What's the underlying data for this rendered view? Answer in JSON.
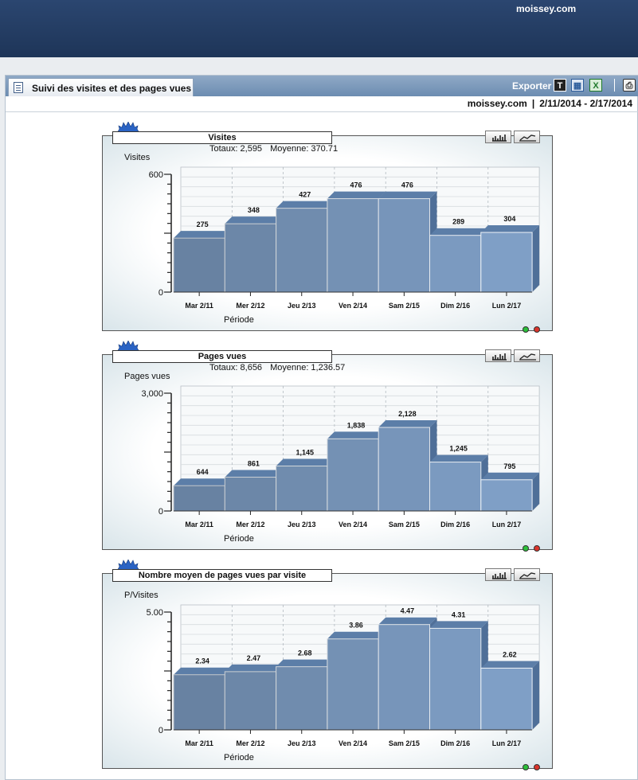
{
  "header": {
    "site": "moissey.com"
  },
  "panel": {
    "tab_label": "Suivi des visites et des pages vues",
    "export_label": "Exporter",
    "site": "moissey.com",
    "separator": "|",
    "date_range": "2/11/2014 - 2/17/2014"
  },
  "icons": {
    "tab": "report-icon",
    "export_text": "text-export-icon",
    "export_doc": "document-export-icon",
    "export_excel": "excel-export-icon",
    "print": "print-icon",
    "chart_type_bar": "bar-chart-icon",
    "chart_type_line": "line-chart-icon",
    "status": "status-dot-icon"
  },
  "colors": {
    "header_bg": "#26406a",
    "bar_front": "#7f9fc6",
    "bar_top": "#5c7ea8",
    "bar_side": "#4f6f98",
    "status_green": "#2bbf3a",
    "status_red": "#d9342b"
  },
  "chart_data": [
    {
      "type": "bar",
      "title": "Visites",
      "totals_label": "Totaux: 2,595",
      "average_label": "Moyenne: 370.71",
      "ylabel": "Visites",
      "xlabel": "Période",
      "ylim": [
        0,
        600
      ],
      "y_ticks": [
        "0",
        "600"
      ],
      "categories": [
        "Mar 2/11",
        "Mer 2/12",
        "Jeu 2/13",
        "Ven 2/14",
        "Sam 2/15",
        "Dim 2/16",
        "Lun 2/17"
      ],
      "values": [
        275,
        348,
        427,
        476,
        476,
        289,
        304
      ],
      "value_labels": [
        "275",
        "348",
        "427",
        "476",
        "476",
        "289",
        "304"
      ]
    },
    {
      "type": "bar",
      "title": "Pages vues",
      "totals_label": "Totaux: 8,656",
      "average_label": "Moyenne: 1,236.57",
      "ylabel": "Pages vues",
      "xlabel": "Période",
      "ylim": [
        0,
        3000
      ],
      "y_ticks": [
        "0",
        "3,000"
      ],
      "categories": [
        "Mar 2/11",
        "Mer 2/12",
        "Jeu 2/13",
        "Ven 2/14",
        "Sam 2/15",
        "Dim 2/16",
        "Lun 2/17"
      ],
      "values": [
        644,
        861,
        1145,
        1838,
        2128,
        1245,
        795
      ],
      "value_labels": [
        "644",
        "861",
        "1,145",
        "1,838",
        "2,128",
        "1,245",
        "795"
      ]
    },
    {
      "type": "bar",
      "title": "Nombre moyen de pages vues par visite",
      "totals_label": "",
      "average_label": "",
      "ylabel": "P/Visites",
      "xlabel": "Période",
      "ylim": [
        0,
        5
      ],
      "y_ticks": [
        "0",
        "5.00"
      ],
      "categories": [
        "Mar 2/11",
        "Mer 2/12",
        "Jeu 2/13",
        "Ven 2/14",
        "Sam 2/15",
        "Dim 2/16",
        "Lun 2/17"
      ],
      "values": [
        2.34,
        2.47,
        2.68,
        3.86,
        4.47,
        4.31,
        2.62
      ],
      "value_labels": [
        "2.34",
        "2.47",
        "2.68",
        "3.86",
        "4.47",
        "4.31",
        "2.62"
      ]
    }
  ]
}
